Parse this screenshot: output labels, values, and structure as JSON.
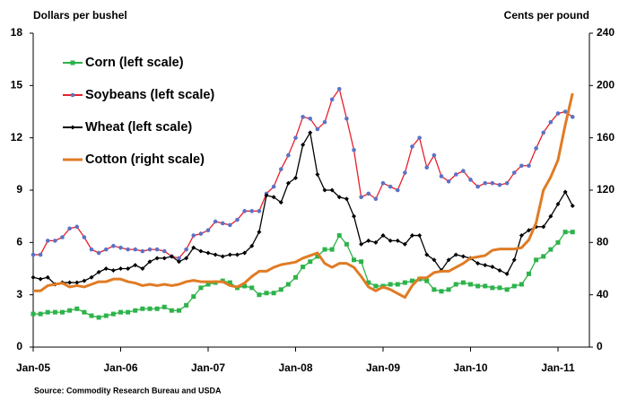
{
  "chart_data": {
    "type": "line",
    "ylabel": "Dollars per bushel",
    "y2label": "Cents per pound",
    "source": "Source:  Commodity Research Bureau and USDA",
    "categories": [
      "Jan-05",
      null,
      null,
      null,
      null,
      null,
      null,
      null,
      null,
      null,
      null,
      null,
      "Jan-06",
      null,
      null,
      null,
      null,
      null,
      null,
      null,
      null,
      null,
      null,
      null,
      "Jan-07",
      null,
      null,
      null,
      null,
      null,
      null,
      null,
      null,
      null,
      null,
      null,
      "Jan-08",
      null,
      null,
      null,
      null,
      null,
      null,
      null,
      null,
      null,
      null,
      null,
      "Jan-09",
      null,
      null,
      null,
      null,
      null,
      null,
      null,
      null,
      null,
      null,
      null,
      "Jan-10",
      null,
      null,
      null,
      null,
      null,
      null,
      null,
      null,
      null,
      null,
      null,
      "Jan-11",
      null,
      null
    ],
    "ylim": [
      0,
      18
    ],
    "yticks": [
      0,
      3,
      6,
      9,
      12,
      15,
      18
    ],
    "y2lim": [
      0,
      240
    ],
    "y2ticks": [
      0,
      40,
      80,
      120,
      160,
      200,
      240
    ],
    "grid": false,
    "legend": "upper left",
    "series": [
      {
        "name": "Corn (left scale)",
        "color": "#2db34a",
        "marker": "square",
        "marker_color": "#2db34a",
        "values": [
          1.9,
          1.9,
          2.0,
          2.0,
          2.0,
          2.1,
          2.2,
          2.0,
          1.8,
          1.7,
          1.8,
          1.9,
          2.0,
          2.0,
          2.1,
          2.2,
          2.2,
          2.2,
          2.3,
          2.1,
          2.1,
          2.4,
          2.9,
          3.4,
          3.6,
          3.7,
          3.8,
          3.7,
          3.4,
          3.5,
          3.4,
          3.0,
          3.1,
          3.1,
          3.3,
          3.6,
          4.0,
          4.6,
          4.9,
          5.2,
          5.6,
          5.6,
          6.4,
          5.9,
          5.0,
          4.9,
          3.7,
          3.5,
          3.5,
          3.6,
          3.6,
          3.7,
          3.8,
          3.9,
          3.8,
          3.3,
          3.2,
          3.3,
          3.6,
          3.7,
          3.6,
          3.5,
          3.5,
          3.4,
          3.4,
          3.3,
          3.5,
          3.6,
          4.2,
          5.0,
          5.2,
          5.6,
          6.0,
          6.6,
          6.6
        ]
      },
      {
        "name": "Soybeans (left scale)",
        "color": "#e8202a",
        "marker": "circle",
        "marker_color": "#5b73c7",
        "values": [
          5.3,
          5.3,
          6.1,
          6.1,
          6.3,
          6.8,
          6.9,
          6.3,
          5.6,
          5.4,
          5.6,
          5.8,
          5.7,
          5.6,
          5.6,
          5.5,
          5.6,
          5.6,
          5.5,
          5.2,
          5.1,
          5.6,
          6.4,
          6.5,
          6.7,
          7.2,
          7.1,
          7.0,
          7.3,
          7.8,
          7.8,
          7.8,
          8.8,
          9.2,
          10.2,
          11.0,
          12.0,
          13.2,
          13.1,
          12.5,
          12.9,
          14.2,
          14.8,
          13.1,
          11.3,
          8.6,
          8.8,
          8.5,
          9.4,
          9.2,
          9.0,
          10.0,
          11.5,
          12.0,
          10.3,
          11.0,
          9.8,
          9.5,
          9.9,
          10.1,
          9.6,
          9.2,
          9.4,
          9.4,
          9.3,
          9.4,
          10.0,
          10.4,
          10.4,
          11.4,
          12.3,
          12.9,
          13.4,
          13.5,
          13.2
        ]
      },
      {
        "name": "Wheat (left scale)",
        "color": "#000000",
        "marker": "diamond",
        "marker_color": "#000000",
        "values": [
          4.0,
          3.9,
          4.0,
          3.6,
          3.7,
          3.7,
          3.7,
          3.8,
          4.0,
          4.3,
          4.5,
          4.4,
          4.5,
          4.5,
          4.7,
          4.5,
          4.9,
          5.1,
          5.1,
          5.2,
          4.9,
          5.1,
          5.7,
          5.5,
          5.4,
          5.3,
          5.2,
          5.3,
          5.3,
          5.4,
          5.8,
          6.6,
          8.7,
          8.6,
          8.3,
          9.4,
          9.7,
          11.6,
          12.3,
          9.9,
          9.0,
          9.0,
          8.6,
          8.5,
          7.5,
          5.9,
          6.1,
          6.0,
          6.4,
          6.1,
          6.1,
          5.9,
          6.4,
          6.4,
          5.3,
          5.0,
          4.4,
          5.0,
          5.3,
          5.2,
          5.1,
          4.8,
          4.7,
          4.6,
          4.4,
          4.2,
          5.0,
          6.4,
          6.7,
          6.9,
          6.9,
          7.5,
          8.2,
          8.9,
          8.1
        ]
      },
      {
        "name": "Cotton (right scale)",
        "color": "#e07b24",
        "axis": "y2",
        "values": [
          43,
          43,
          47,
          48,
          49,
          46,
          47,
          46,
          48,
          50,
          50,
          52,
          52,
          50,
          49,
          47,
          48,
          47,
          48,
          47,
          48,
          50,
          51,
          50,
          50,
          50,
          50,
          47,
          46,
          49,
          54,
          58,
          58,
          61,
          63,
          64,
          65,
          68,
          70,
          72,
          64,
          61,
          64,
          64,
          61,
          54,
          46,
          43,
          46,
          44,
          41,
          38,
          47,
          53,
          53,
          57,
          58,
          58,
          61,
          64,
          68,
          69,
          70,
          74,
          75,
          75,
          75,
          76,
          82,
          95,
          120,
          130,
          143,
          170,
          194
        ]
      }
    ]
  }
}
